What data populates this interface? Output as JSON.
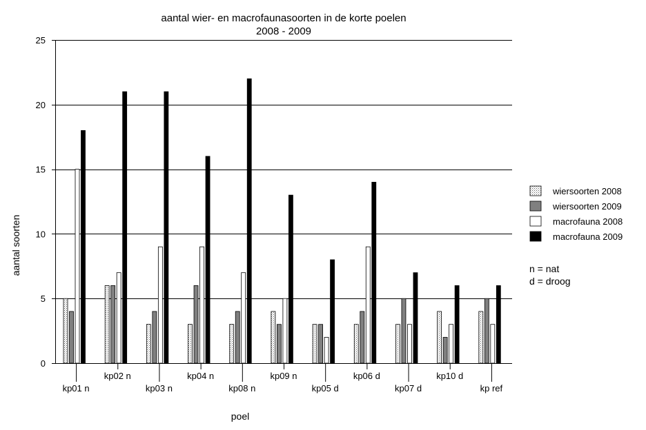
{
  "chart_data": {
    "type": "bar",
    "title": "aantal wier- en macrofaunasoorten in de korte poelen",
    "subtitle": "2008 - 2009",
    "xlabel": "poel",
    "ylabel": "aantal soorten",
    "ylim": [
      0,
      25
    ],
    "yticks": [
      0,
      5,
      10,
      15,
      20,
      25
    ],
    "grid": true,
    "legend_position": "right",
    "categories": [
      "kp01 n",
      "kp02 n",
      "kp03 n",
      "kp04 n",
      "kp08 n",
      "kp09 n",
      "kp05 d",
      "kp06 d",
      "kp07 d",
      "kp10 d",
      "kp ref"
    ],
    "series": [
      {
        "name": "wiersoorten 2008",
        "color": "#e6e6e6",
        "pattern": "dotted",
        "values": [
          5,
          6,
          3,
          3,
          3,
          4,
          3,
          3,
          3,
          4,
          4
        ]
      },
      {
        "name": "wiersoorten 2009",
        "color": "#808080",
        "values": [
          4,
          6,
          4,
          6,
          4,
          3,
          3,
          4,
          5,
          2,
          5
        ]
      },
      {
        "name": "macrofauna 2008",
        "color": "#ffffff",
        "values": [
          15,
          7,
          9,
          9,
          7,
          5,
          2,
          9,
          3,
          3,
          3
        ]
      },
      {
        "name": "macrofauna 2009",
        "color": "#000000",
        "values": [
          18,
          21,
          21,
          16,
          22,
          13,
          8,
          14,
          7,
          6,
          6
        ]
      }
    ]
  },
  "notes": [
    "n = nat",
    "d = droog"
  ]
}
